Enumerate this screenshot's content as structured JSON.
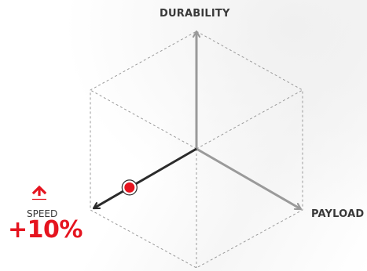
{
  "axes": {
    "durability": "DURABILITY",
    "payload": "PAYLOAD",
    "speed": "SPEED"
  },
  "speed_indicator": {
    "arrow_icon": "arrow-up-icon",
    "value": "+10%",
    "level": 0.65
  },
  "colors": {
    "accent_red": "#e5141f",
    "active_axis": "#2b2b2b",
    "inactive_axis": "#9a9a9a",
    "grid": "#9a9a9a",
    "label_text": "#3a3a3a"
  }
}
